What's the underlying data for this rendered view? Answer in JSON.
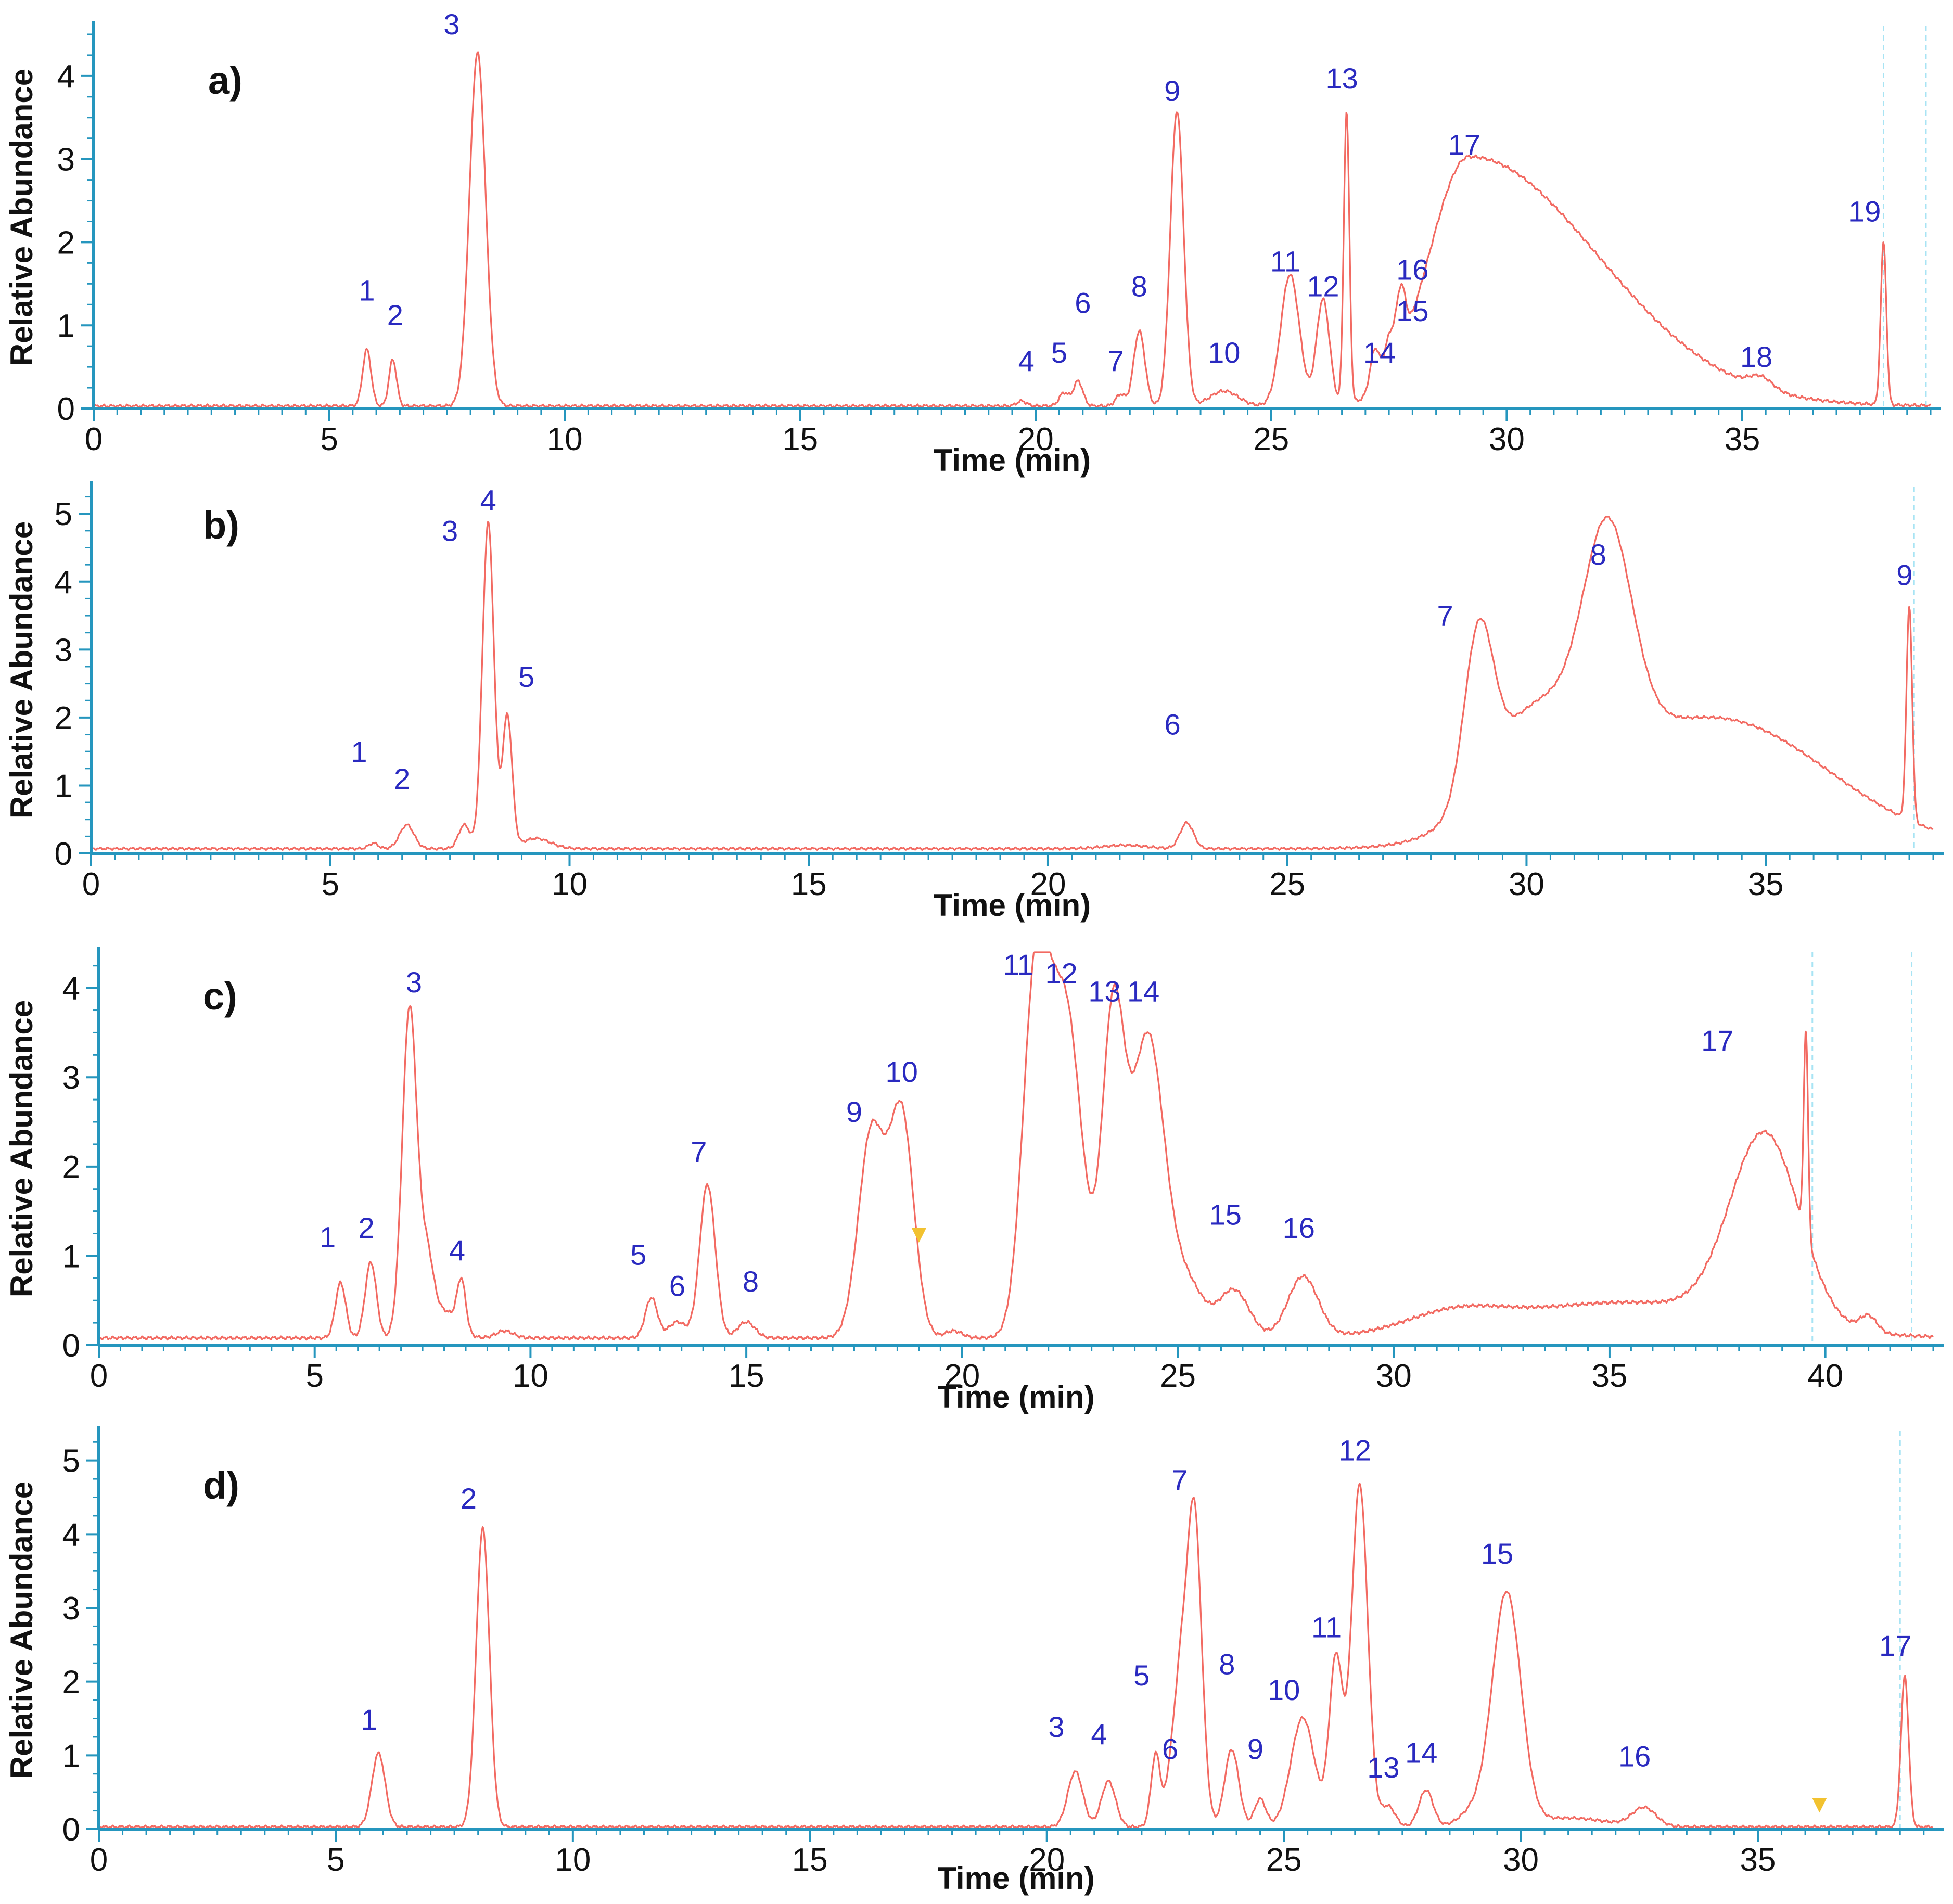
{
  "figure": {
    "colors": {
      "trace": "#f26a62",
      "axis": "#2596be",
      "peak_label": "#2a2ac0",
      "text": "#111111",
      "marker": "#f2c230",
      "guide": "#a8e4f4"
    }
  },
  "chart_data": [
    {
      "type": "line",
      "panel": "a)",
      "xlabel": "Time (min)",
      "ylabel": "Relative Abundance",
      "xlim": [
        0,
        39
      ],
      "ylim": [
        0,
        4.6
      ],
      "xticks": [
        0,
        5,
        10,
        15,
        20,
        25,
        30,
        35
      ],
      "yticks": [
        0,
        1,
        2,
        3,
        4
      ],
      "guides": [
        38.0,
        38.9
      ],
      "markers": [],
      "baseline": 0.03,
      "peaks": [
        {
          "label": "1",
          "rt": 5.8,
          "height": 0.68,
          "width": 0.09
        },
        {
          "label": "2",
          "rt": 6.35,
          "height": 0.56,
          "width": 0.08
        },
        {
          "label": "3",
          "rt": 8.15,
          "height": 4.25,
          "width": 0.17
        },
        {
          "label": "4",
          "rt": 19.7,
          "height": 0.06,
          "width": 0.1
        },
        {
          "label": "5",
          "rt": 20.6,
          "height": 0.16,
          "width": 0.1
        },
        {
          "label": "6",
          "rt": 20.9,
          "height": 0.3,
          "width": 0.1
        },
        {
          "label": "7",
          "rt": 21.8,
          "height": 0.14,
          "width": 0.1
        },
        {
          "label": "8",
          "rt": 22.2,
          "height": 0.9,
          "width": 0.12
        },
        {
          "label": "9",
          "rt": 23.0,
          "height": 3.55,
          "width": 0.14
        },
        {
          "label": "10",
          "rt": 24.0,
          "height": 0.18,
          "width": 0.3
        },
        {
          "label": "11",
          "rt": 25.4,
          "height": 1.58,
          "width": 0.2
        },
        {
          "label": "12",
          "rt": 26.1,
          "height": 1.28,
          "width": 0.14
        },
        {
          "label": "13",
          "rt": 26.6,
          "height": 3.5,
          "width": 0.06
        },
        {
          "label": "14",
          "rt": 27.2,
          "height": 0.5,
          "width": 0.1
        },
        {
          "label": "15",
          "rt": 27.5,
          "height": 0.42,
          "width": 0.1
        },
        {
          "label": "16",
          "rt": 27.75,
          "height": 0.74,
          "width": 0.1
        },
        {
          "label": "17",
          "rt": 29.2,
          "height": 3.0,
          "width": 0.85,
          "tail": 3.2
        },
        {
          "label": "18",
          "rt": 35.4,
          "height": 0.14,
          "width": 0.25
        },
        {
          "label": "19",
          "rt": 38.0,
          "height": 1.95,
          "width": 0.06
        }
      ],
      "peak_labels": [
        {
          "text": "1",
          "rt": 5.8,
          "y": 1.3
        },
        {
          "text": "2",
          "rt": 6.4,
          "y": 1.0
        },
        {
          "text": "3",
          "rt": 7.6,
          "y": 4.5
        },
        {
          "text": "4",
          "rt": 19.8,
          "y": 0.45
        },
        {
          "text": "5",
          "rt": 20.5,
          "y": 0.55
        },
        {
          "text": "6",
          "rt": 21.0,
          "y": 1.15
        },
        {
          "text": "7",
          "rt": 21.7,
          "y": 0.45
        },
        {
          "text": "8",
          "rt": 22.2,
          "y": 1.35
        },
        {
          "text": "9",
          "rt": 22.9,
          "y": 3.7
        },
        {
          "text": "10",
          "rt": 24.0,
          "y": 0.55
        },
        {
          "text": "11",
          "rt": 25.3,
          "y": 1.65
        },
        {
          "text": "12",
          "rt": 26.1,
          "y": 1.35
        },
        {
          "text": "13",
          "rt": 26.5,
          "y": 3.85
        },
        {
          "text": "14",
          "rt": 27.3,
          "y": 0.55
        },
        {
          "text": "15",
          "rt": 28.0,
          "y": 1.05
        },
        {
          "text": "16",
          "rt": 28.0,
          "y": 1.55
        },
        {
          "text": "17",
          "rt": 29.1,
          "y": 3.05
        },
        {
          "text": "18",
          "rt": 35.3,
          "y": 0.5
        },
        {
          "text": "19",
          "rt": 37.6,
          "y": 2.25
        }
      ]
    },
    {
      "type": "line",
      "panel": "b)",
      "xlabel": "Time (min)",
      "ylabel": "Relative Abundance",
      "xlim": [
        0,
        38.5
      ],
      "ylim": [
        0,
        5.4
      ],
      "xticks": [
        0,
        5,
        10,
        15,
        20,
        25,
        30,
        35
      ],
      "yticks": [
        0,
        1,
        2,
        3,
        4,
        5
      ],
      "guides": [
        38.1
      ],
      "markers": [],
      "baseline": 0.07,
      "peaks": [
        {
          "label": "1",
          "rt": 5.9,
          "height": 0.08,
          "width": 0.1
        },
        {
          "label": "2",
          "rt": 6.6,
          "height": 0.35,
          "width": 0.15
        },
        {
          "label": "",
          "rt": 7.8,
          "height": 0.35,
          "width": 0.12
        },
        {
          "label": "3/4",
          "rt": 8.3,
          "height": 4.8,
          "width": 0.12
        },
        {
          "label": "5",
          "rt": 8.7,
          "height": 1.95,
          "width": 0.1
        },
        {
          "label": "",
          "rt": 9.3,
          "height": 0.15,
          "width": 0.3
        },
        {
          "label": "",
          "rt": 21.6,
          "height": 0.05,
          "width": 0.45
        },
        {
          "label": "6",
          "rt": 22.9,
          "height": 0.38,
          "width": 0.14
        },
        {
          "label": "7",
          "rt": 29.0,
          "height": 2.35,
          "width": 0.3
        },
        {
          "label": "",
          "rt": 30.0,
          "height": 0.7,
          "width": 0.8
        },
        {
          "label": "",
          "rt": 30.5,
          "height": 1.0,
          "width": 1.3
        },
        {
          "label": "8",
          "rt": 31.7,
          "height": 3.0,
          "width": 0.5
        },
        {
          "label": "",
          "rt": 34.0,
          "height": 1.9,
          "width": 2.3
        },
        {
          "label": "9",
          "rt": 38.0,
          "height": 3.15,
          "width": 0.06
        }
      ],
      "peak_labels": [
        {
          "text": "1",
          "rt": 5.6,
          "y": 1.35
        },
        {
          "text": "2",
          "rt": 6.5,
          "y": 0.95
        },
        {
          "text": "3",
          "rt": 7.5,
          "y": 4.6
        },
        {
          "text": "4",
          "rt": 8.3,
          "y": 5.05
        },
        {
          "text": "5",
          "rt": 9.1,
          "y": 2.45
        },
        {
          "text": "6",
          "rt": 22.6,
          "y": 1.75
        },
        {
          "text": "7",
          "rt": 28.3,
          "y": 3.35
        },
        {
          "text": "8",
          "rt": 31.5,
          "y": 4.25
        },
        {
          "text": "9",
          "rt": 37.9,
          "y": 3.95
        }
      ]
    },
    {
      "type": "line",
      "panel": "c)",
      "xlabel": "Time (min)",
      "ylabel": "Relative Abundance",
      "xlim": [
        0,
        42.5
      ],
      "ylim": [
        0,
        4.4
      ],
      "xticks": [
        0,
        5,
        10,
        15,
        20,
        25,
        30,
        35,
        40
      ],
      "yticks": [
        0,
        1,
        2,
        3,
        4
      ],
      "guides": [
        39.7,
        42.0
      ],
      "markers": [
        19.0
      ],
      "baseline": 0.08,
      "peaks": [
        {
          "label": "1",
          "rt": 5.6,
          "height": 0.62,
          "width": 0.12
        },
        {
          "label": "2",
          "rt": 6.3,
          "height": 0.85,
          "width": 0.13
        },
        {
          "label": "3",
          "rt": 7.2,
          "height": 3.7,
          "width": 0.17
        },
        {
          "label": "",
          "rt": 7.6,
          "height": 0.8,
          "width": 0.15
        },
        {
          "label": "",
          "rt": 8.0,
          "height": 0.3,
          "width": 0.3
        },
        {
          "label": "4",
          "rt": 8.4,
          "height": 0.55,
          "width": 0.1
        },
        {
          "label": "",
          "rt": 9.4,
          "height": 0.08,
          "width": 0.2
        },
        {
          "label": "5",
          "rt": 12.8,
          "height": 0.45,
          "width": 0.14
        },
        {
          "label": "6",
          "rt": 13.4,
          "height": 0.18,
          "width": 0.2
        },
        {
          "label": "7",
          "rt": 14.1,
          "height": 1.72,
          "width": 0.18
        },
        {
          "label": "8",
          "rt": 15.0,
          "height": 0.18,
          "width": 0.2
        },
        {
          "label": "9",
          "rt": 17.9,
          "height": 2.3,
          "width": 0.3
        },
        {
          "label": "10",
          "rt": 18.6,
          "height": 2.48,
          "width": 0.28
        },
        {
          "label": "",
          "rt": 19.8,
          "height": 0.08,
          "width": 0.2
        },
        {
          "label": "11",
          "rt": 21.7,
          "height": 3.8,
          "width": 0.3
        },
        {
          "label": "12",
          "rt": 22.4,
          "height": 3.65,
          "width": 0.38
        },
        {
          "label": "13",
          "rt": 23.5,
          "height": 3.5,
          "width": 0.26
        },
        {
          "label": "14",
          "rt": 24.3,
          "height": 3.35,
          "width": 0.38
        },
        {
          "label": "",
          "rt": 25.2,
          "height": 0.6,
          "width": 0.4
        },
        {
          "label": "15",
          "rt": 26.3,
          "height": 0.53,
          "width": 0.35
        },
        {
          "label": "16",
          "rt": 27.9,
          "height": 0.68,
          "width": 0.35
        },
        {
          "label": "",
          "rt": 31.4,
          "height": 0.2,
          "width": 1.1
        },
        {
          "label": "",
          "rt": 35.4,
          "height": 0.4,
          "width": 2.8
        },
        {
          "label": "17",
          "rt": 38.6,
          "height": 2.1,
          "width": 0.8
        },
        {
          "label": "",
          "rt": 39.55,
          "height": 2.3,
          "width": 0.05
        },
        {
          "label": "",
          "rt": 41.0,
          "height": 0.18,
          "width": 0.2
        }
      ],
      "peak_labels": [
        {
          "text": "1",
          "rt": 5.3,
          "y": 1.1
        },
        {
          "text": "2",
          "rt": 6.2,
          "y": 1.2
        },
        {
          "text": "3",
          "rt": 7.3,
          "y": 3.95
        },
        {
          "text": "4",
          "rt": 8.3,
          "y": 0.95
        },
        {
          "text": "5",
          "rt": 12.5,
          "y": 0.9
        },
        {
          "text": "6",
          "rt": 13.4,
          "y": 0.55
        },
        {
          "text": "7",
          "rt": 13.9,
          "y": 2.05
        },
        {
          "text": "8",
          "rt": 15.1,
          "y": 0.6
        },
        {
          "text": "9",
          "rt": 17.5,
          "y": 2.5
        },
        {
          "text": "10",
          "rt": 18.6,
          "y": 2.95
        },
        {
          "text": "11",
          "rt": 21.3,
          "y": 4.15
        },
        {
          "text": "12",
          "rt": 22.3,
          "y": 4.05
        },
        {
          "text": "13",
          "rt": 23.3,
          "y": 3.85
        },
        {
          "text": "14",
          "rt": 24.2,
          "y": 3.85
        },
        {
          "text": "15",
          "rt": 26.1,
          "y": 1.35
        },
        {
          "text": "16",
          "rt": 27.8,
          "y": 1.2
        },
        {
          "text": "17",
          "rt": 37.5,
          "y": 3.3
        }
      ]
    },
    {
      "type": "line",
      "panel": "d)",
      "xlabel": "Time (min)",
      "ylabel": "Relative Abundance",
      "xlim": [
        0,
        38.7
      ],
      "ylim": [
        0,
        5.4
      ],
      "xticks": [
        0,
        5,
        10,
        15,
        20,
        25,
        30,
        35
      ],
      "yticks": [
        0,
        1,
        2,
        3,
        4,
        5
      ],
      "guides": [
        38.0
      ],
      "markers": [
        36.3
      ],
      "baseline": 0.03,
      "peaks": [
        {
          "label": "1",
          "rt": 5.9,
          "height": 1.0,
          "width": 0.14
        },
        {
          "label": "2",
          "rt": 8.1,
          "height": 4.05,
          "width": 0.14
        },
        {
          "label": "3",
          "rt": 20.6,
          "height": 0.75,
          "width": 0.16
        },
        {
          "label": "4",
          "rt": 21.3,
          "height": 0.62,
          "width": 0.15
        },
        {
          "label": "5",
          "rt": 22.3,
          "height": 1.0,
          "width": 0.1
        },
        {
          "label": "6",
          "rt": 22.6,
          "height": 0.6,
          "width": 0.1
        },
        {
          "label": "7",
          "rt": 23.1,
          "height": 4.4,
          "width": 0.16
        },
        {
          "label": "",
          "rt": 22.8,
          "height": 1.6,
          "width": 0.12
        },
        {
          "label": "8",
          "rt": 23.9,
          "height": 1.05,
          "width": 0.15
        },
        {
          "label": "9",
          "rt": 24.5,
          "height": 0.38,
          "width": 0.12
        },
        {
          "label": "10",
          "rt": 25.4,
          "height": 1.48,
          "width": 0.25
        },
        {
          "label": "11",
          "rt": 26.1,
          "height": 2.28,
          "width": 0.14
        },
        {
          "label": "12",
          "rt": 26.6,
          "height": 4.65,
          "width": 0.17
        },
        {
          "label": "13",
          "rt": 27.2,
          "height": 0.28,
          "width": 0.15
        },
        {
          "label": "14",
          "rt": 28.0,
          "height": 0.5,
          "width": 0.15
        },
        {
          "label": "",
          "rt": 29.0,
          "height": 0.2,
          "width": 0.3
        },
        {
          "label": "15",
          "rt": 29.7,
          "height": 3.15,
          "width": 0.3
        },
        {
          "label": "",
          "rt": 31.0,
          "height": 0.12,
          "width": 0.8
        },
        {
          "label": "16",
          "rt": 32.6,
          "height": 0.25,
          "width": 0.25
        },
        {
          "label": "17",
          "rt": 38.1,
          "height": 2.05,
          "width": 0.08
        }
      ],
      "peak_labels": [
        {
          "text": "1",
          "rt": 5.7,
          "y": 1.35
        },
        {
          "text": "2",
          "rt": 7.8,
          "y": 4.35
        },
        {
          "text": "3",
          "rt": 20.2,
          "y": 1.25
        },
        {
          "text": "4",
          "rt": 21.1,
          "y": 1.15
        },
        {
          "text": "5",
          "rt": 22.0,
          "y": 1.95
        },
        {
          "text": "6",
          "rt": 22.6,
          "y": 0.95
        },
        {
          "text": "7",
          "rt": 22.8,
          "y": 4.6
        },
        {
          "text": "8",
          "rt": 23.8,
          "y": 2.1
        },
        {
          "text": "9",
          "rt": 24.4,
          "y": 0.95
        },
        {
          "text": "10",
          "rt": 25.0,
          "y": 1.75
        },
        {
          "text": "11",
          "rt": 25.9,
          "y": 2.6
        },
        {
          "text": "12",
          "rt": 26.5,
          "y": 5.0
        },
        {
          "text": "13",
          "rt": 27.1,
          "y": 0.7
        },
        {
          "text": "14",
          "rt": 27.9,
          "y": 0.9
        },
        {
          "text": "15",
          "rt": 29.5,
          "y": 3.6
        },
        {
          "text": "16",
          "rt": 32.4,
          "y": 0.85
        },
        {
          "text": "17",
          "rt": 37.9,
          "y": 2.35
        }
      ]
    }
  ]
}
